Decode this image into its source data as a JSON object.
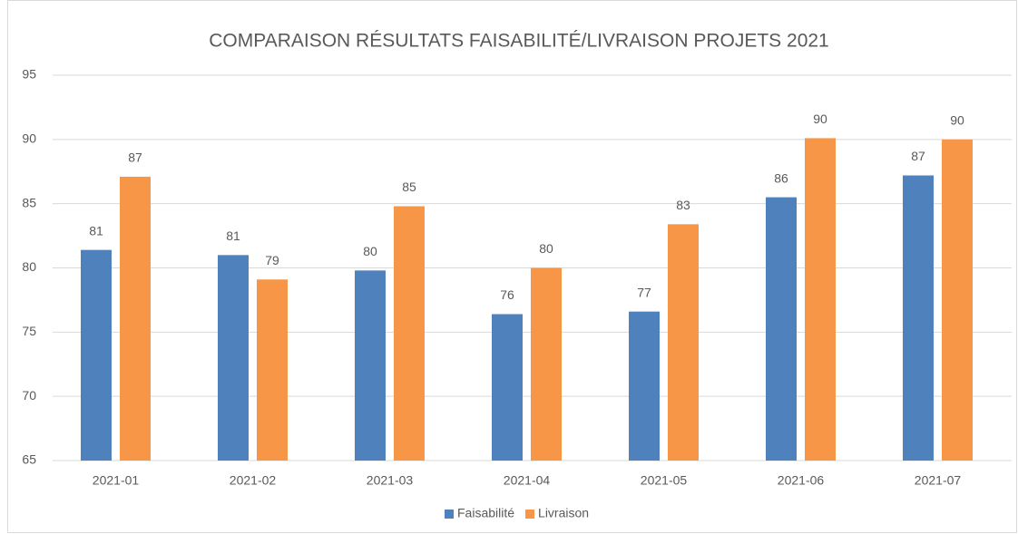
{
  "chart_data": {
    "type": "bar",
    "title": "COMPARAISON RÉSULTATS FAISABILITÉ/LIVRAISON  PROJETS 2021",
    "categories": [
      "2021-01",
      "2021-02",
      "2021-03",
      "2021-04",
      "2021-05",
      "2021-06",
      "2021-07"
    ],
    "series": [
      {
        "name": "Faisabilité",
        "color": "#4f81bd",
        "values": [
          81.4,
          81.0,
          79.8,
          76.4,
          76.6,
          85.5,
          87.2
        ],
        "value_labels": [
          "81",
          "81",
          "80",
          "76",
          "77",
          "86",
          "87"
        ]
      },
      {
        "name": "Livraison",
        "color": "#f79646",
        "values": [
          87.1,
          79.1,
          84.8,
          80.0,
          83.4,
          90.1,
          90.0
        ],
        "value_labels": [
          "87",
          "79",
          "85",
          "80",
          "83",
          "90",
          "90"
        ]
      }
    ],
    "ylim": [
      65,
      95
    ],
    "yticks": [
      65,
      70,
      75,
      80,
      85,
      90,
      95
    ],
    "grid": true,
    "legend": "bottom"
  }
}
